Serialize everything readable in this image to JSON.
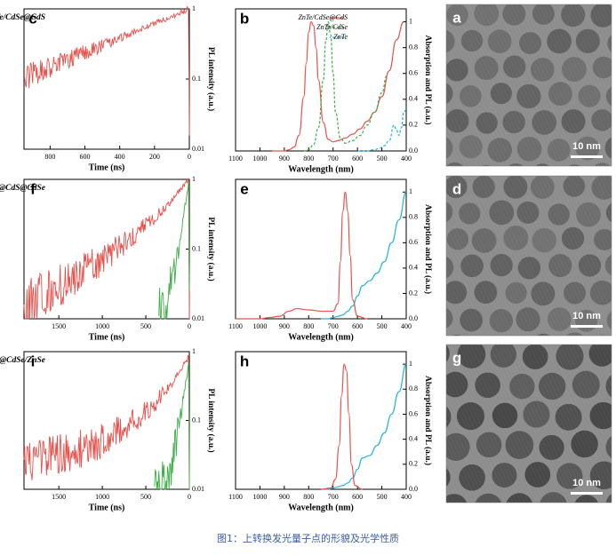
{
  "caption": "图1：上转换发光量子点的形貌及光学性质",
  "panel_letters": {
    "a": "a",
    "b": "b",
    "c": "c",
    "d": "d",
    "e": "e",
    "f": "f",
    "g": "g",
    "h": "h",
    "i": "i"
  },
  "scale_bar_label": "10 nm",
  "colors": {
    "red": "#e8514c",
    "green": "#3cae45",
    "cyan": "#1fb5d7",
    "axis": "#000000",
    "tem_bg": "#8d8d8d"
  },
  "chart_data": [
    {
      "panel": "b",
      "type": "line",
      "xlabel": "Wavelength (nm)",
      "ylabel": "Absorption and PL (a.u.)",
      "xlim": [
        400,
        1100
      ],
      "ylim": [
        0,
        1.1
      ],
      "xticks": [
        400,
        500,
        600,
        700,
        800,
        900,
        1000,
        1100
      ],
      "yticks": [
        0.0,
        0.2,
        0.4,
        0.6,
        0.8,
        1.0
      ],
      "legend": {
        "position": "top-right",
        "entries": [
          "ZnTe/CdSe@CdS",
          "ZnTe/CdSe",
          "ZnTe"
        ]
      },
      "series": [
        {
          "name": "ZnTe/CdSe@CdS",
          "color": "red",
          "style": "solid",
          "x": [
            410,
            440,
            470,
            500,
            530,
            560,
            590,
            620,
            650,
            680,
            700,
            720,
            740,
            760,
            770,
            780,
            790,
            800,
            810,
            820,
            840,
            860,
            880,
            900,
            950
          ],
          "y": [
            1.0,
            0.86,
            0.62,
            0.42,
            0.3,
            0.23,
            0.17,
            0.13,
            0.1,
            0.08,
            0.07,
            0.09,
            0.22,
            0.55,
            0.8,
            0.97,
            1.0,
            0.92,
            0.68,
            0.42,
            0.12,
            0.03,
            0.01,
            0.0,
            0.0
          ]
        },
        {
          "name": "ZnTe/CdSe",
          "color": "green",
          "style": "dash",
          "x": [
            480,
            500,
            530,
            560,
            590,
            620,
            650,
            670,
            690,
            700,
            710,
            720,
            730,
            740,
            760,
            780,
            800,
            820
          ],
          "y": [
            0.58,
            0.45,
            0.3,
            0.2,
            0.12,
            0.08,
            0.06,
            0.1,
            0.3,
            0.6,
            0.9,
            1.0,
            0.85,
            0.55,
            0.18,
            0.05,
            0.01,
            0.0
          ]
        },
        {
          "name": "ZnTe",
          "color": "cyan",
          "style": "dash",
          "x": [
            400,
            410,
            420,
            430,
            440,
            450,
            470,
            490,
            510,
            530,
            560,
            600
          ],
          "y": [
            0.32,
            0.3,
            0.18,
            0.12,
            0.16,
            0.2,
            0.08,
            0.04,
            0.02,
            0.01,
            0.0,
            0.0
          ]
        }
      ]
    },
    {
      "panel": "c",
      "type": "line",
      "title": "ZnTe/CdSe@CdS",
      "xlabel": "Time (ns)",
      "ylabel": "PL intensity (a.u.)",
      "xlim": [
        0,
        950
      ],
      "yscale": "log",
      "ylim": [
        0.01,
        1
      ],
      "xticks": [
        0,
        200,
        400,
        600,
        800
      ],
      "yticks": [
        0.01,
        0.1,
        1
      ],
      "series": [
        {
          "name": "",
          "color": "red",
          "decay_tau": 420,
          "noisy": true,
          "x": [
            0,
            5,
            100,
            200,
            300,
            400,
            500,
            600,
            700,
            800,
            900,
            950
          ],
          "y": [
            0.01,
            1.0,
            0.78,
            0.62,
            0.49,
            0.38,
            0.3,
            0.24,
            0.19,
            0.15,
            0.12,
            0.1
          ]
        }
      ]
    },
    {
      "panel": "e",
      "type": "line",
      "xlabel": "Wavelength (nm)",
      "ylabel": "Absorption and PL (a.u.)",
      "xlim": [
        400,
        1100
      ],
      "ylim": [
        0,
        1.1
      ],
      "xticks": [
        400,
        500,
        600,
        700,
        800,
        900,
        1000,
        1100
      ],
      "yticks": [
        0.0,
        0.2,
        0.4,
        0.6,
        0.8,
        1.0
      ],
      "series": [
        {
          "name": "",
          "color": "cyan",
          "x": [
            400,
            430,
            460,
            490,
            520,
            550,
            580,
            600,
            620,
            640,
            660,
            680,
            700,
            720,
            750
          ],
          "y": [
            1.0,
            0.78,
            0.6,
            0.45,
            0.36,
            0.3,
            0.26,
            0.18,
            0.1,
            0.06,
            0.03,
            0.02,
            0.01,
            0.0,
            0.0
          ]
        },
        {
          "name": "",
          "color": "red",
          "x": [
            560,
            600,
            620,
            630,
            640,
            650,
            660,
            670,
            680,
            700,
            750,
            800,
            850,
            880,
            920,
            960,
            1000,
            1100
          ],
          "y": [
            0.0,
            0.02,
            0.15,
            0.5,
            0.85,
            1.0,
            0.85,
            0.45,
            0.12,
            0.06,
            0.06,
            0.07,
            0.08,
            0.06,
            0.02,
            0.01,
            0.0,
            0.0
          ]
        }
      ]
    },
    {
      "panel": "f",
      "type": "line",
      "title": "ZnTe/CdSe@CdS@CdSe",
      "xlabel": "Time (ns)",
      "ylabel": "PL intensity (a.u.)",
      "xlim": [
        0,
        1900
      ],
      "yscale": "log",
      "ylim": [
        0.01,
        1
      ],
      "xticks": [
        0,
        500,
        1000,
        1500
      ],
      "yticks": [
        0.01,
        0.1,
        1
      ],
      "series": [
        {
          "name": "",
          "color": "red",
          "noisy": true,
          "x": [
            0,
            8,
            200,
            400,
            600,
            800,
            1000,
            1200,
            1400,
            1600,
            1800,
            1900
          ],
          "y": [
            0.012,
            1.0,
            0.5,
            0.28,
            0.17,
            0.11,
            0.07,
            0.05,
            0.035,
            0.025,
            0.018,
            0.016
          ]
        },
        {
          "name": "",
          "color": "green",
          "noisy": true,
          "x": [
            0,
            8,
            50,
            100,
            150,
            200,
            250,
            300,
            350
          ],
          "y": [
            0.012,
            0.9,
            0.4,
            0.16,
            0.07,
            0.035,
            0.02,
            0.013,
            0.011
          ]
        }
      ]
    },
    {
      "panel": "h",
      "type": "line",
      "xlabel": "Wavelength (nm)",
      "ylabel": "Absorption and PL (a.u.)",
      "xlim": [
        400,
        1100
      ],
      "ylim": [
        0,
        1.1
      ],
      "xticks": [
        400,
        500,
        600,
        700,
        800,
        900,
        1000,
        1100
      ],
      "yticks": [
        0.0,
        0.2,
        0.4,
        0.6,
        0.8,
        1.0
      ],
      "series": [
        {
          "name": "",
          "color": "cyan",
          "x": [
            400,
            430,
            460,
            490,
            520,
            550,
            580,
            600,
            620,
            640,
            660,
            680,
            700,
            720,
            750
          ],
          "y": [
            1.0,
            0.78,
            0.6,
            0.45,
            0.35,
            0.27,
            0.25,
            0.16,
            0.09,
            0.05,
            0.03,
            0.02,
            0.01,
            0.0,
            0.0
          ]
        },
        {
          "name": "",
          "color": "red",
          "x": [
            580,
            610,
            625,
            635,
            645,
            655,
            665,
            675,
            690,
            710,
            750
          ],
          "y": [
            0.0,
            0.03,
            0.2,
            0.6,
            0.95,
            1.0,
            0.75,
            0.35,
            0.08,
            0.01,
            0.0
          ]
        }
      ]
    },
    {
      "panel": "i",
      "type": "line",
      "title": "ZnTe/CdSe@CdS@CdSe/ZnSe",
      "xlabel": "Time (ns)",
      "ylabel": "PL intensity (a.u.)",
      "xlim": [
        0,
        1900
      ],
      "yscale": "log",
      "ylim": [
        0.01,
        1
      ],
      "xticks": [
        0,
        500,
        1000,
        1500
      ],
      "yticks": [
        0.01,
        0.1,
        1
      ],
      "series": [
        {
          "name": "",
          "color": "red",
          "noisy": true,
          "x": [
            0,
            8,
            200,
            400,
            600,
            800,
            1000,
            1200,
            1400,
            1600,
            1800,
            1900
          ],
          "y": [
            0.012,
            0.85,
            0.35,
            0.17,
            0.1,
            0.07,
            0.05,
            0.04,
            0.035,
            0.03,
            0.028,
            0.027
          ]
        },
        {
          "name": "",
          "color": "green",
          "noisy": true,
          "x": [
            0,
            8,
            50,
            100,
            150,
            200,
            250,
            300,
            350,
            400
          ],
          "y": [
            0.012,
            0.65,
            0.3,
            0.12,
            0.05,
            0.025,
            0.016,
            0.012,
            0.011,
            0.011
          ]
        }
      ]
    }
  ]
}
